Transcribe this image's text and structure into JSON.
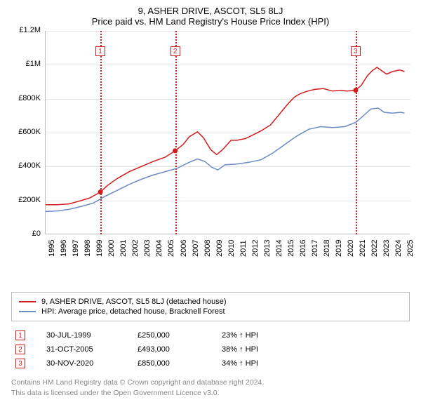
{
  "title": {
    "line1": "9, ASHER DRIVE, ASCOT, SL5 8LJ",
    "line2": "Price paid vs. HM Land Registry's House Price Index (HPI)"
  },
  "chart": {
    "type": "line",
    "x_years": [
      1995,
      1996,
      1997,
      1998,
      1999,
      2000,
      2001,
      2002,
      2003,
      2004,
      2005,
      2006,
      2007,
      2008,
      2009,
      2010,
      2011,
      2012,
      2013,
      2014,
      2015,
      2016,
      2017,
      2018,
      2019,
      2020,
      2021,
      2022,
      2023,
      2024,
      2025
    ],
    "xlim": [
      1995,
      2025.5
    ],
    "ylim": [
      0,
      1200000
    ],
    "ytick_step": 200000,
    "ytick_labels": [
      "£0",
      "£200K",
      "£400K",
      "£600K",
      "£800K",
      "£1M",
      "£1.2M"
    ],
    "grid_color": "#e6e6e6",
    "background_color": "#ffffff",
    "series": [
      {
        "name": "property",
        "label": "9, ASHER DRIVE, ASCOT, SL5 8LJ (detached house)",
        "color": "#d01c1c",
        "line_width": 1.5,
        "points": [
          [
            1995.0,
            175000
          ],
          [
            1996.0,
            175000
          ],
          [
            1997.0,
            180000
          ],
          [
            1998.0,
            200000
          ],
          [
            1998.7,
            215000
          ],
          [
            1999.58,
            250000
          ],
          [
            2000.2,
            290000
          ],
          [
            2001.0,
            330000
          ],
          [
            2002.0,
            370000
          ],
          [
            2003.0,
            400000
          ],
          [
            2004.0,
            430000
          ],
          [
            2005.0,
            455000
          ],
          [
            2005.83,
            493000
          ],
          [
            2006.5,
            530000
          ],
          [
            2007.0,
            575000
          ],
          [
            2007.7,
            605000
          ],
          [
            2008.2,
            570000
          ],
          [
            2008.8,
            500000
          ],
          [
            2009.3,
            470000
          ],
          [
            2009.8,
            500000
          ],
          [
            2010.5,
            555000
          ],
          [
            2011.0,
            555000
          ],
          [
            2011.7,
            565000
          ],
          [
            2012.3,
            585000
          ],
          [
            2013.0,
            610000
          ],
          [
            2013.8,
            645000
          ],
          [
            2014.5,
            705000
          ],
          [
            2015.2,
            765000
          ],
          [
            2015.8,
            810000
          ],
          [
            2016.3,
            830000
          ],
          [
            2016.9,
            845000
          ],
          [
            2017.5,
            855000
          ],
          [
            2018.2,
            860000
          ],
          [
            2019.0,
            845000
          ],
          [
            2019.7,
            850000
          ],
          [
            2020.2,
            845000
          ],
          [
            2020.92,
            850000
          ],
          [
            2021.4,
            880000
          ],
          [
            2021.9,
            935000
          ],
          [
            2022.3,
            965000
          ],
          [
            2022.7,
            985000
          ],
          [
            2023.0,
            970000
          ],
          [
            2023.5,
            945000
          ],
          [
            2024.0,
            960000
          ],
          [
            2024.6,
            970000
          ],
          [
            2025.0,
            960000
          ]
        ]
      },
      {
        "name": "hpi",
        "label": "HPI: Average price, detached house, Bracknell Forest",
        "color": "#6a8bc8",
        "line_width": 1.5,
        "points": [
          [
            1995.0,
            135000
          ],
          [
            1996.0,
            138000
          ],
          [
            1997.0,
            148000
          ],
          [
            1998.0,
            165000
          ],
          [
            1999.0,
            185000
          ],
          [
            2000.0,
            225000
          ],
          [
            2001.0,
            260000
          ],
          [
            2002.0,
            295000
          ],
          [
            2003.0,
            325000
          ],
          [
            2004.0,
            350000
          ],
          [
            2005.0,
            370000
          ],
          [
            2006.0,
            390000
          ],
          [
            2007.0,
            425000
          ],
          [
            2007.7,
            445000
          ],
          [
            2008.3,
            430000
          ],
          [
            2008.9,
            395000
          ],
          [
            2009.4,
            380000
          ],
          [
            2010.0,
            410000
          ],
          [
            2011.0,
            415000
          ],
          [
            2012.0,
            425000
          ],
          [
            2013.0,
            440000
          ],
          [
            2014.0,
            480000
          ],
          [
            2015.0,
            530000
          ],
          [
            2016.0,
            580000
          ],
          [
            2017.0,
            620000
          ],
          [
            2018.0,
            635000
          ],
          [
            2019.0,
            630000
          ],
          [
            2020.0,
            635000
          ],
          [
            2020.92,
            660000
          ],
          [
            2021.5,
            695000
          ],
          [
            2022.2,
            740000
          ],
          [
            2022.8,
            745000
          ],
          [
            2023.3,
            720000
          ],
          [
            2024.0,
            715000
          ],
          [
            2024.7,
            720000
          ],
          [
            2025.0,
            715000
          ]
        ]
      }
    ],
    "sale_markers": [
      {
        "n": "1",
        "year": 1999.58,
        "price": 250000,
        "box_top": 22
      },
      {
        "n": "2",
        "year": 2005.83,
        "price": 493000,
        "box_top": 22
      },
      {
        "n": "3",
        "year": 2020.92,
        "price": 850000,
        "box_top": 22
      }
    ]
  },
  "legend": {
    "items": [
      {
        "color": "#d01c1c",
        "label": "9, ASHER DRIVE, ASCOT, SL5 8LJ (detached house)"
      },
      {
        "color": "#6a8bc8",
        "label": "HPI: Average price, detached house, Bracknell Forest"
      }
    ]
  },
  "sales": [
    {
      "n": "1",
      "date": "30-JUL-1999",
      "price": "£250,000",
      "delta": "23% ↑ HPI"
    },
    {
      "n": "2",
      "date": "31-OCT-2005",
      "price": "£493,000",
      "delta": "38% ↑ HPI"
    },
    {
      "n": "3",
      "date": "30-NOV-2020",
      "price": "£850,000",
      "delta": "34% ↑ HPI"
    }
  ],
  "footnote": {
    "line1": "Contains HM Land Registry data © Crown copyright and database right 2024.",
    "line2": "This data is licensed under the Open Government Licence v3.0."
  }
}
